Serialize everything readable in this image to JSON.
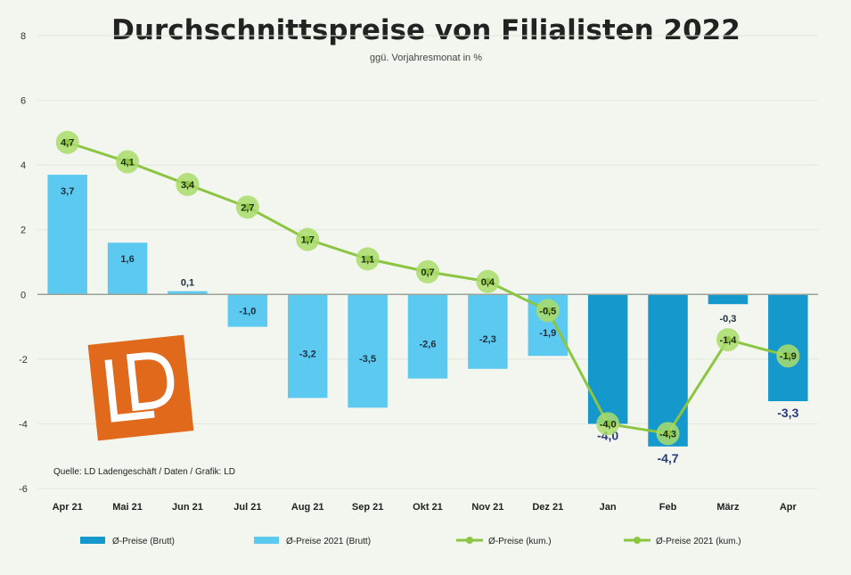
{
  "chart_data": {
    "type": "bar",
    "title": "Durchschnittspreise von Filialisten 2022",
    "subtitle": "ggü. Vorjahresmonat in %",
    "source": "Quelle: LD Ladengeschäft / Daten / Grafik: LD",
    "categories": [
      "Apr 21",
      "Mai 21",
      "Jun 21",
      "Jul 21",
      "Aug 21",
      "Sep 21",
      "Okt 21",
      "Nov 21",
      "Dez 21",
      "Jan",
      "Feb",
      "März",
      "Apr"
    ],
    "ylim": [
      -6,
      8
    ],
    "yticks": [
      -6,
      -4,
      -2,
      0,
      2,
      4,
      6,
      8
    ],
    "grid": true,
    "legend_position": "bottom",
    "colors": {
      "bar_2022": "#1598cc",
      "bar_2021": "#5ccaf0",
      "line": "#8bc541",
      "marker": "#a9dc68",
      "logo": "#e0691c"
    },
    "series": [
      {
        "name": "Ø-Preise (Brutt)",
        "kind": "bar",
        "values": [
          null,
          null,
          null,
          null,
          null,
          null,
          null,
          null,
          null,
          -4.0,
          -4.7,
          -0.3,
          -3.3
        ],
        "labels": [
          "",
          "",
          "",
          "",
          "",
          "",
          "",
          "",
          "",
          "-4,0",
          "-4,7",
          "-0,3",
          "-3,3"
        ]
      },
      {
        "name": "Ø-Preise 2021 (Brutt)",
        "kind": "bar",
        "values": [
          3.7,
          1.6,
          0.1,
          -1.0,
          -3.2,
          -3.5,
          -2.6,
          -2.3,
          -1.9,
          null,
          null,
          null,
          null
        ],
        "labels": [
          "3,7",
          "1,6",
          "0,1",
          "-1,0",
          "-3,2",
          "-3,5",
          "-2,6",
          "-2,3",
          "-1,9",
          "",
          "",
          "",
          ""
        ]
      },
      {
        "name": "Ø-Preise (kum.)",
        "kind": "line",
        "values": [
          null,
          null,
          null,
          null,
          null,
          null,
          null,
          null,
          -0.5,
          -4.0,
          -4.3,
          -1.4,
          -1.9
        ],
        "labels": [
          "",
          "",
          "",
          "",
          "",
          "",
          "",
          "",
          "-0,5",
          "-4,0",
          "-4,3",
          "-1,4",
          "-1,9"
        ]
      },
      {
        "name": "Ø-Preise 2021 (kum.)",
        "kind": "line",
        "values": [
          4.7,
          4.1,
          3.4,
          2.7,
          1.7,
          1.1,
          0.7,
          0.4,
          -0.5,
          null,
          null,
          null,
          null
        ],
        "labels": [
          "4,7",
          "4,1",
          "3,4",
          "2,7",
          "1,7",
          "1,1",
          "0,7",
          "0,4",
          "",
          "",
          "",
          "",
          ""
        ]
      }
    ]
  }
}
